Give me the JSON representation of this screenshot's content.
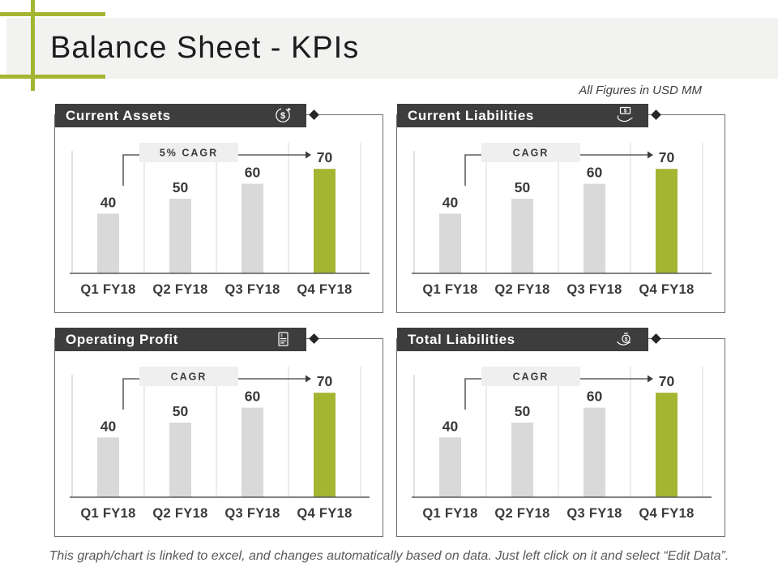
{
  "slide": {
    "title": "Balance Sheet - KPIs",
    "note": "All Figures in USD MM",
    "footer": "This graph/chart is linked to excel, and changes automatically based on data. Just left click on it and select “Edit Data”."
  },
  "colors": {
    "accent": "#a4b532",
    "bar_gray": "#d9d9d9",
    "header_bg": "#3d3d3d",
    "header_text": "#ffffff",
    "axis_line": "#595959",
    "grid_line": "#d9d9d9",
    "yaxis_line": "#c6c6c6",
    "label_text": "#3a3a3a",
    "cagr_bg": "#efefef",
    "connector": "#3d3d3d",
    "panel_border": "#6e6e6e"
  },
  "chart_data": [
    {
      "type": "bar",
      "title": "Current Assets",
      "icon": "dollar-cycle-icon",
      "annotation_label": "5% CAGR",
      "categories": [
        "Q1 FY18",
        "Q2 FY18",
        "Q3 FY18",
        "Q4 FY18"
      ],
      "values": [
        40,
        50,
        60,
        70
      ],
      "highlight_index": 3,
      "ylim": [
        0,
        75
      ],
      "grid": "vertical-separators",
      "legend": "none"
    },
    {
      "type": "bar",
      "title": "Current Liabilities",
      "icon": "hand-dollar-icon",
      "annotation_label": "CAGR",
      "categories": [
        "Q1 FY18",
        "Q2 FY18",
        "Q3 FY18",
        "Q4 FY18"
      ],
      "values": [
        40,
        50,
        60,
        70
      ],
      "highlight_index": 3,
      "ylim": [
        0,
        75
      ],
      "grid": "vertical-separators",
      "legend": "none"
    },
    {
      "type": "bar",
      "title": "Operating Profit",
      "icon": "receipt-icon",
      "annotation_label": "CAGR",
      "categories": [
        "Q1 FY18",
        "Q2 FY18",
        "Q3 FY18",
        "Q4 FY18"
      ],
      "values": [
        40,
        50,
        60,
        70
      ],
      "highlight_index": 3,
      "ylim": [
        0,
        75
      ],
      "grid": "vertical-separators",
      "legend": "none"
    },
    {
      "type": "bar",
      "title": "Total Liabilities",
      "icon": "money-bag-hand-icon",
      "annotation_label": "CAGR",
      "categories": [
        "Q1 FY18",
        "Q2 FY18",
        "Q3 FY18",
        "Q4 FY18"
      ],
      "values": [
        40,
        50,
        60,
        70
      ],
      "highlight_index": 3,
      "ylim": [
        0,
        75
      ],
      "grid": "vertical-separators",
      "legend": "none"
    }
  ]
}
